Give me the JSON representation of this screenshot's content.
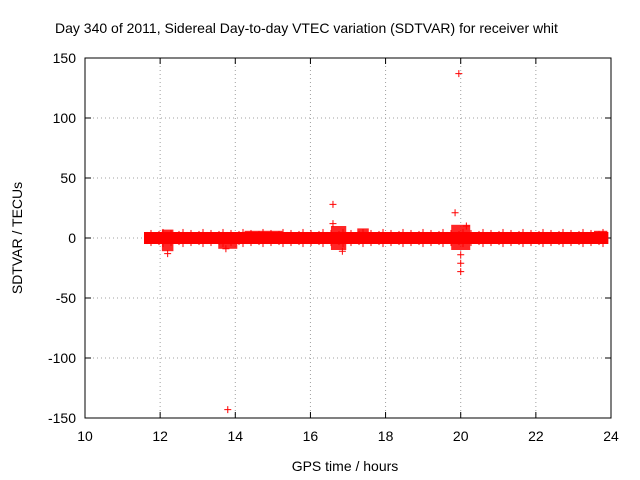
{
  "chart_data": {
    "type": "scatter",
    "title": "Day 340 of 2011, Sidereal Day-to-day VTEC variation (SDTVAR) for receiver whit",
    "xlabel": "GPS time / hours",
    "ylabel": "SDTVAR / TECUs",
    "xlim": [
      10,
      24
    ],
    "ylim": [
      -150,
      150
    ],
    "xticks": [
      10,
      12,
      14,
      16,
      18,
      20,
      22,
      24
    ],
    "yticks": [
      -150,
      -100,
      -50,
      0,
      50,
      100,
      150
    ],
    "grid": true,
    "marker": "+",
    "color": "#ff0000",
    "dense_band": {
      "x_start": 11.65,
      "x_end": 23.85,
      "center": 0,
      "half_width": 2.5,
      "bulges": [
        {
          "x_start": 12.1,
          "x_end": 12.3,
          "low": -11,
          "high": 7
        },
        {
          "x_start": 13.6,
          "x_end": 14.0,
          "low": -9,
          "high": 4
        },
        {
          "x_start": 14.3,
          "x_end": 15.2,
          "low": -3,
          "high": 6
        },
        {
          "x_start": 16.6,
          "x_end": 16.9,
          "low": -10,
          "high": 10
        },
        {
          "x_start": 17.3,
          "x_end": 17.5,
          "low": -5,
          "high": 8
        },
        {
          "x_start": 19.8,
          "x_end": 20.2,
          "low": -10,
          "high": 11
        },
        {
          "x_start": 21.2,
          "x_end": 21.5,
          "low": -4,
          "high": 5
        },
        {
          "x_start": 23.6,
          "x_end": 23.85,
          "low": -4,
          "high": 6
        }
      ]
    },
    "points": [
      {
        "x": 13.8,
        "y": -143
      },
      {
        "x": 16.6,
        "y": 28
      },
      {
        "x": 16.6,
        "y": 12
      },
      {
        "x": 16.85,
        "y": -11
      },
      {
        "x": 19.85,
        "y": 21
      },
      {
        "x": 19.95,
        "y": 137
      },
      {
        "x": 20.0,
        "y": -14
      },
      {
        "x": 20.0,
        "y": -21
      },
      {
        "x": 20.0,
        "y": -28
      },
      {
        "x": 20.15,
        "y": 10
      },
      {
        "x": 12.2,
        "y": -13
      },
      {
        "x": 13.75,
        "y": -9
      }
    ]
  }
}
